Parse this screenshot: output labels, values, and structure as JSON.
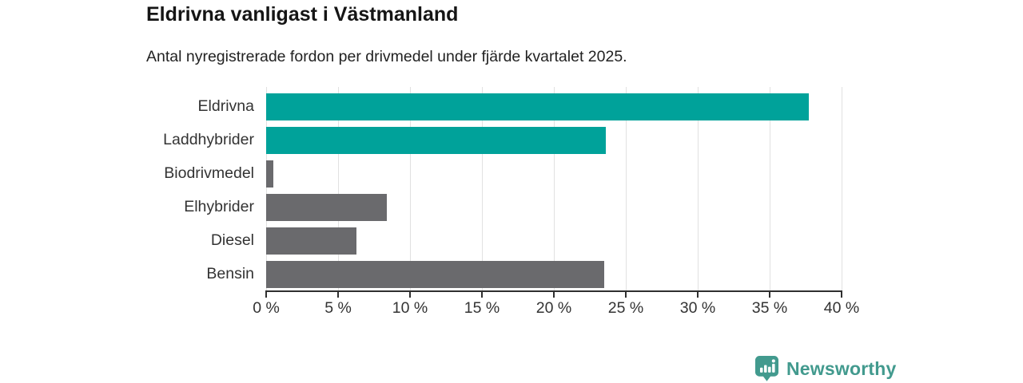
{
  "header": {
    "title": "Eldrivna vanligast i Västmanland",
    "subtitle": "Antal nyregistrerade fordon per drivmedel under fjärde kvartalet 2025."
  },
  "chart_data": {
    "type": "bar",
    "orientation": "horizontal",
    "title": "Eldrivna vanligast i Västmanland",
    "subtitle": "Antal nyregistrerade fordon per drivmedel under fjärde kvartalet 2025.",
    "categories": [
      "Eldrivna",
      "Laddhybrider",
      "Biodrivmedel",
      "Elhybrider",
      "Diesel",
      "Bensin"
    ],
    "values": [
      37.7,
      23.6,
      0.5,
      8.4,
      6.3,
      23.5
    ],
    "unit": "%",
    "xlabel": "",
    "ylabel": "",
    "xlim": [
      0,
      40
    ],
    "x_tick_values": [
      0,
      5,
      10,
      15,
      20,
      25,
      30,
      35,
      40
    ],
    "x_tick_labels": [
      "0 %",
      "5 %",
      "10 %",
      "15 %",
      "20 %",
      "25 %",
      "30 %",
      "35 %",
      "40 %"
    ],
    "grid": "vertical",
    "legend": "none",
    "highlight_color": "#00a29a",
    "default_color": "#6a6a6d",
    "bar_colors": [
      "#00a29a",
      "#00a29a",
      "#6a6a6d",
      "#6a6a6d",
      "#6a6a6d",
      "#6a6a6d"
    ]
  },
  "branding": {
    "logo_text": "Newsworthy",
    "logo_icon": "bar-chart-pin-icon",
    "logo_color": "#429a8e"
  }
}
